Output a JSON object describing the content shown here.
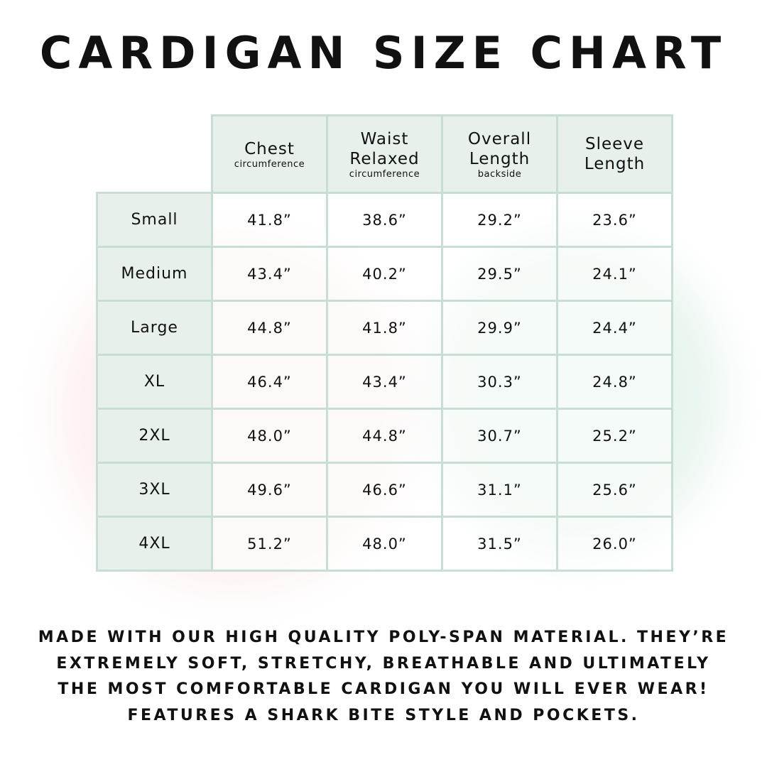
{
  "title": "CARDIGAN SIZE CHART",
  "columns": [
    {
      "label": "Chest",
      "sub": "circumference"
    },
    {
      "label": "Waist Relaxed",
      "sub": "circumference"
    },
    {
      "label": "Overall Length",
      "sub": "backside"
    },
    {
      "label": "Sleeve Length",
      "sub": ""
    }
  ],
  "rows": [
    {
      "size": "Small",
      "values": [
        "41.8”",
        "38.6”",
        "29.2”",
        "23.6”"
      ]
    },
    {
      "size": "Medium",
      "values": [
        "43.4”",
        "40.2”",
        "29.5”",
        "24.1”"
      ]
    },
    {
      "size": "Large",
      "values": [
        "44.8”",
        "41.8”",
        "29.9”",
        "24.4”"
      ]
    },
    {
      "size": "XL",
      "values": [
        "46.4”",
        "43.4”",
        "30.3”",
        "24.8”"
      ]
    },
    {
      "size": "2XL",
      "values": [
        "48.0”",
        "44.8”",
        "30.7”",
        "25.2”"
      ]
    },
    {
      "size": "3XL",
      "values": [
        "49.6”",
        "46.6”",
        "31.1”",
        "25.6”"
      ]
    },
    {
      "size": "4XL",
      "values": [
        "51.2”",
        "48.0”",
        "31.5”",
        "26.0”"
      ]
    }
  ],
  "footer": [
    "MADE WITH OUR HIGH QUALITY POLY-SPAN MATERIAL. THEY’RE",
    "EXTREMELY SOFT, STRETCHY, BREATHABLE AND ULTIMATELY",
    "THE MOST COMFORTABLE CARDIGAN YOU WILL EVER WEAR!",
    "FEATURES A SHARK BITE STYLE AND POCKETS."
  ],
  "colors": {
    "header_bg": "#e8f0ec",
    "border": "#c8ddd3",
    "text": "#111111"
  }
}
